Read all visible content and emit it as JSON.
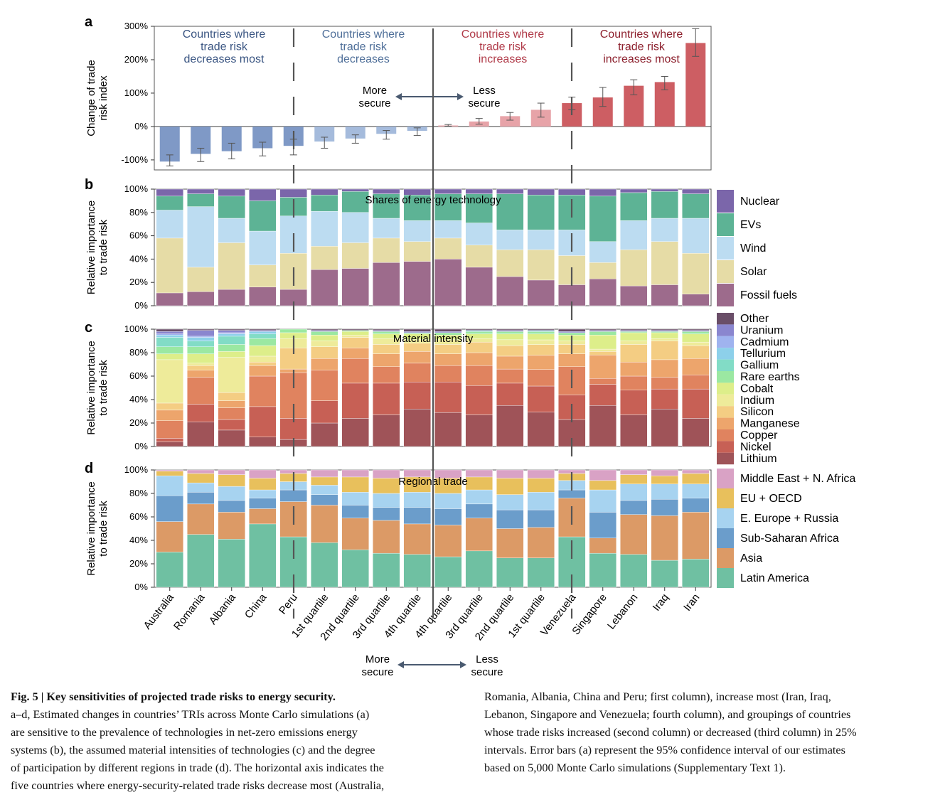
{
  "figure": {
    "panel_letters": [
      "a",
      "b",
      "c",
      "d"
    ],
    "categories": [
      "Australia",
      "Romania",
      "Albania",
      "China",
      "Peru",
      "1st quartile",
      "2nd quartile",
      "3rd quartile",
      "4th quartile",
      "4th quartile",
      "3rd quartile",
      "2nd quartile",
      "1st quartile",
      "Venezuela",
      "Singapore",
      "Lebanon",
      "Iraq",
      "Iran"
    ],
    "group_headers": [
      {
        "lines": [
          "Countries where",
          "trade risk",
          "decreases most"
        ],
        "color": "#3a5582"
      },
      {
        "lines": [
          "Countries where",
          "trade risk",
          "decreases"
        ],
        "color": "#4f6f99"
      },
      {
        "lines": [
          "Countries where",
          "trade risk",
          "increases"
        ],
        "color": "#b03a48"
      },
      {
        "lines": [
          "Countries where",
          "trade risk",
          "increases most"
        ],
        "color": "#8c1f2c"
      }
    ],
    "secure_arrow": {
      "more": [
        "More",
        "secure"
      ],
      "less": [
        "Less",
        "secure"
      ]
    }
  },
  "chart_data": [
    {
      "panel": "a",
      "type": "bar",
      "ylabel": [
        "Change of trade",
        "risk index"
      ],
      "ylim": [
        -130,
        300
      ],
      "yticks": [
        "300%",
        "200%",
        "100%",
        "0%",
        "-100%"
      ],
      "categories": [
        "Australia",
        "Romania",
        "Albania",
        "China",
        "Peru",
        "1st quartile",
        "2nd quartile",
        "3rd quartile",
        "4th quartile",
        "4th quartile",
        "3rd quartile",
        "2nd quartile",
        "1st quartile",
        "Venezuela",
        "Singapore",
        "Lebanon",
        "Iraq",
        "Iran"
      ],
      "values": [
        -105,
        -82,
        -74,
        -65,
        -58,
        -45,
        -36,
        -22,
        -13,
        3,
        15,
        31,
        50,
        70,
        87,
        122,
        133,
        250
      ],
      "error_low": [
        -118,
        -105,
        -97,
        -88,
        -85,
        -65,
        -50,
        -38,
        -27,
        1,
        7,
        19,
        28,
        50,
        60,
        95,
        110,
        210
      ],
      "error_high": [
        -85,
        -65,
        -50,
        -47,
        -38,
        -32,
        -25,
        -12,
        -4,
        6,
        24,
        42,
        70,
        88,
        117,
        140,
        150,
        293
      ],
      "colors": [
        "#7f99c6",
        "#7f99c6",
        "#7f99c6",
        "#7f99c6",
        "#7f99c6",
        "#a5bbdc",
        "#a5bbdc",
        "#a5bbdc",
        "#a5bbdc",
        "#e7a3a8",
        "#e7a3a8",
        "#e7a3a8",
        "#e7a3a8",
        "#cd5e63",
        "#cd5e63",
        "#cd5e63",
        "#cd5e63",
        "#cd5e63"
      ]
    },
    {
      "panel": "b",
      "type": "bar",
      "stacked": true,
      "title": "Shares of energy technology",
      "ylabel": [
        "Relative importance",
        "to trade risk"
      ],
      "ylim": [
        0,
        100
      ],
      "yticks": [
        "100%",
        "80%",
        "60%",
        "40%",
        "20%",
        "0%"
      ],
      "series": [
        {
          "name": "Fossil fuels",
          "color": "#9d6b8c",
          "values": [
            11,
            12,
            14,
            16,
            14,
            31,
            32,
            37,
            38,
            40,
            33,
            25,
            22,
            18,
            23,
            17,
            18,
            10
          ]
        },
        {
          "name": "Solar",
          "color": "#e6dca6",
          "values": [
            47,
            21,
            40,
            19,
            31,
            20,
            22,
            21,
            17,
            18,
            19,
            23,
            26,
            25,
            14,
            31,
            37,
            35
          ]
        },
        {
          "name": "Wind",
          "color": "#bcdcf1",
          "values": [
            24,
            52,
            21,
            29,
            32,
            30,
            26,
            17,
            18,
            15,
            19,
            17,
            17,
            22,
            18,
            25,
            20,
            30
          ]
        },
        {
          "name": "EVs",
          "color": "#5db395",
          "values": [
            12,
            11,
            19,
            26,
            16,
            14,
            18,
            21,
            22,
            23,
            25,
            31,
            30,
            30,
            39,
            24,
            23,
            21
          ]
        },
        {
          "name": "Nuclear",
          "color": "#7b66aa",
          "values": [
            6,
            4,
            6,
            10,
            7,
            5,
            2,
            4,
            5,
            4,
            4,
            4,
            5,
            5,
            6,
            3,
            2,
            4
          ]
        }
      ]
    },
    {
      "panel": "c",
      "type": "bar",
      "stacked": true,
      "title": "Material intensity",
      "ylabel": [
        "Relative importance",
        "to trade risk"
      ],
      "ylim": [
        0,
        100
      ],
      "yticks": [
        "100%",
        "80%",
        "60%",
        "40%",
        "20%",
        "0%"
      ],
      "series": [
        {
          "name": "Lithium",
          "color": "#9f5358",
          "values": [
            4,
            21,
            14,
            8,
            6,
            20,
            24,
            27,
            32,
            29,
            27,
            35,
            29,
            23,
            35,
            27,
            32,
            24
          ]
        },
        {
          "name": "Nickel",
          "color": "#c76055",
          "values": [
            3,
            15,
            9,
            26,
            18,
            19,
            30,
            27,
            23,
            26,
            25,
            19,
            22,
            21,
            18,
            21,
            17,
            25
          ]
        },
        {
          "name": "Copper",
          "color": "#e0835f",
          "values": [
            15,
            23,
            10,
            26,
            39,
            26,
            21,
            14,
            16,
            14,
            17,
            12,
            14,
            24,
            5,
            12,
            10,
            12
          ]
        },
        {
          "name": "Manganese",
          "color": "#eda56c",
          "values": [
            9,
            6,
            6,
            9,
            3,
            10,
            9,
            11,
            10,
            10,
            11,
            11,
            12,
            11,
            20,
            12,
            15,
            14
          ]
        },
        {
          "name": "Silicon",
          "color": "#f4cd83",
          "values": [
            6,
            4,
            7,
            3,
            18,
            10,
            9,
            8,
            7,
            8,
            9,
            9,
            9,
            8,
            3,
            15,
            16,
            11
          ]
        },
        {
          "name": "Indium",
          "color": "#eeeb9a",
          "values": [
            37,
            2,
            30,
            5,
            8,
            5,
            2,
            5,
            3,
            4,
            3,
            5,
            4,
            3,
            2,
            3,
            2,
            3
          ]
        },
        {
          "name": "Cobalt",
          "color": "#ddee8a",
          "values": [
            5,
            8,
            5,
            9,
            5,
            5,
            3,
            4,
            5,
            4,
            4,
            5,
            5,
            5,
            12,
            7,
            5,
            7
          ]
        },
        {
          "name": "Rare earths",
          "color": "#9be8a2",
          "values": [
            6,
            6,
            6,
            6,
            3,
            3,
            1,
            2,
            1,
            2,
            2,
            2,
            2,
            2,
            3,
            1,
            1,
            2
          ]
        },
        {
          "name": "Gallium",
          "color": "#82dcc6",
          "values": [
            8,
            5,
            7,
            4,
            0,
            0,
            0,
            0,
            0,
            0,
            0,
            0,
            0,
            0,
            0,
            0,
            0,
            0
          ]
        },
        {
          "name": "Tellurium",
          "color": "#8dd0ea",
          "values": [
            2,
            3,
            2,
            2,
            0,
            0,
            0,
            0,
            0,
            0,
            1,
            0,
            1,
            0,
            0,
            0,
            0,
            0
          ]
        },
        {
          "name": "Cadmium",
          "color": "#9fb3ef",
          "values": [
            1,
            1,
            1,
            0,
            0,
            0,
            0,
            0,
            0,
            0,
            0,
            0,
            0,
            0,
            0,
            0,
            0,
            0
          ]
        },
        {
          "name": "Uranium",
          "color": "#8a86cf",
          "values": [
            2,
            5,
            2,
            1,
            0,
            1,
            0,
            1,
            1,
            1,
            0,
            1,
            0,
            1,
            1,
            1,
            1,
            1
          ]
        },
        {
          "name": "Other",
          "color": "#6a4e68",
          "values": [
            2,
            1,
            1,
            1,
            0,
            1,
            1,
            1,
            2,
            2,
            1,
            1,
            1,
            2,
            1,
            1,
            1,
            1
          ]
        }
      ]
    },
    {
      "panel": "d",
      "type": "bar",
      "stacked": true,
      "title": "Regional trade",
      "ylabel": [
        "Relative importance",
        "to trade risk"
      ],
      "ylim": [
        0,
        100
      ],
      "yticks": [
        "100%",
        "80%",
        "60%",
        "40%",
        "20%",
        "0%"
      ],
      "series": [
        {
          "name": "Latin America",
          "color": "#6fc0a2",
          "values": [
            30,
            45,
            41,
            54,
            43,
            38,
            32,
            29,
            28,
            26,
            31,
            25,
            25,
            43,
            29,
            28,
            23,
            24
          ]
        },
        {
          "name": "Asia",
          "color": "#dc9a66",
          "values": [
            26,
            26,
            23,
            13,
            30,
            32,
            27,
            28,
            26,
            27,
            28,
            25,
            26,
            33,
            13,
            34,
            38,
            40
          ]
        },
        {
          "name": "Sub-Saharan Africa",
          "color": "#6b9dcb",
          "values": [
            22,
            10,
            10,
            9,
            10,
            9,
            11,
            11,
            14,
            14,
            12,
            16,
            15,
            7,
            22,
            12,
            14,
            12
          ]
        },
        {
          "name": "E. Europe + Russia",
          "color": "#a7d3f0",
          "values": [
            17,
            8,
            12,
            7,
            7,
            8,
            11,
            12,
            13,
            13,
            12,
            13,
            15,
            8,
            19,
            14,
            13,
            12
          ]
        },
        {
          "name": "EU + OECD",
          "color": "#e8c05c",
          "values": [
            4,
            8,
            10,
            10,
            7,
            7,
            13,
            13,
            13,
            13,
            11,
            14,
            12,
            6,
            8,
            8,
            7,
            9
          ]
        },
        {
          "name": "Middle East + N. Africa",
          "color": "#d9a2c5",
          "values": [
            1,
            3,
            4,
            7,
            3,
            6,
            6,
            7,
            6,
            7,
            6,
            7,
            7,
            3,
            9,
            4,
            5,
            3
          ]
        }
      ]
    }
  ],
  "caption": {
    "heading": "Fig. 5 | Key sensitivities of projected trade risks to energy security.",
    "col1_lines": [
      "a–d, Estimated changes in countries’ TRIs across Monte Carlo simulations (a)",
      "are sensitive to the prevalence of technologies in net-zero emissions energy",
      "systems (b), the assumed material intensities of technologies (c) and the degree",
      "of participation by different regions in trade (d). The horizontal axis indicates the",
      "five countries where energy-security-related trade risks decrease most (Australia,"
    ],
    "col2_lines": [
      "Romania, Albania, China and Peru; first column), increase most (Iran, Iraq,",
      "Lebanon, Singapore and Venezuela; fourth column), and groupings of countries",
      "whose trade risks increased (second column) or decreased (third column) in 25%",
      "intervals. Error bars (a) represent the 95% confidence interval of our estimates",
      "based on 5,000 Monte Carlo simulations (Supplementary Text 1)."
    ]
  }
}
